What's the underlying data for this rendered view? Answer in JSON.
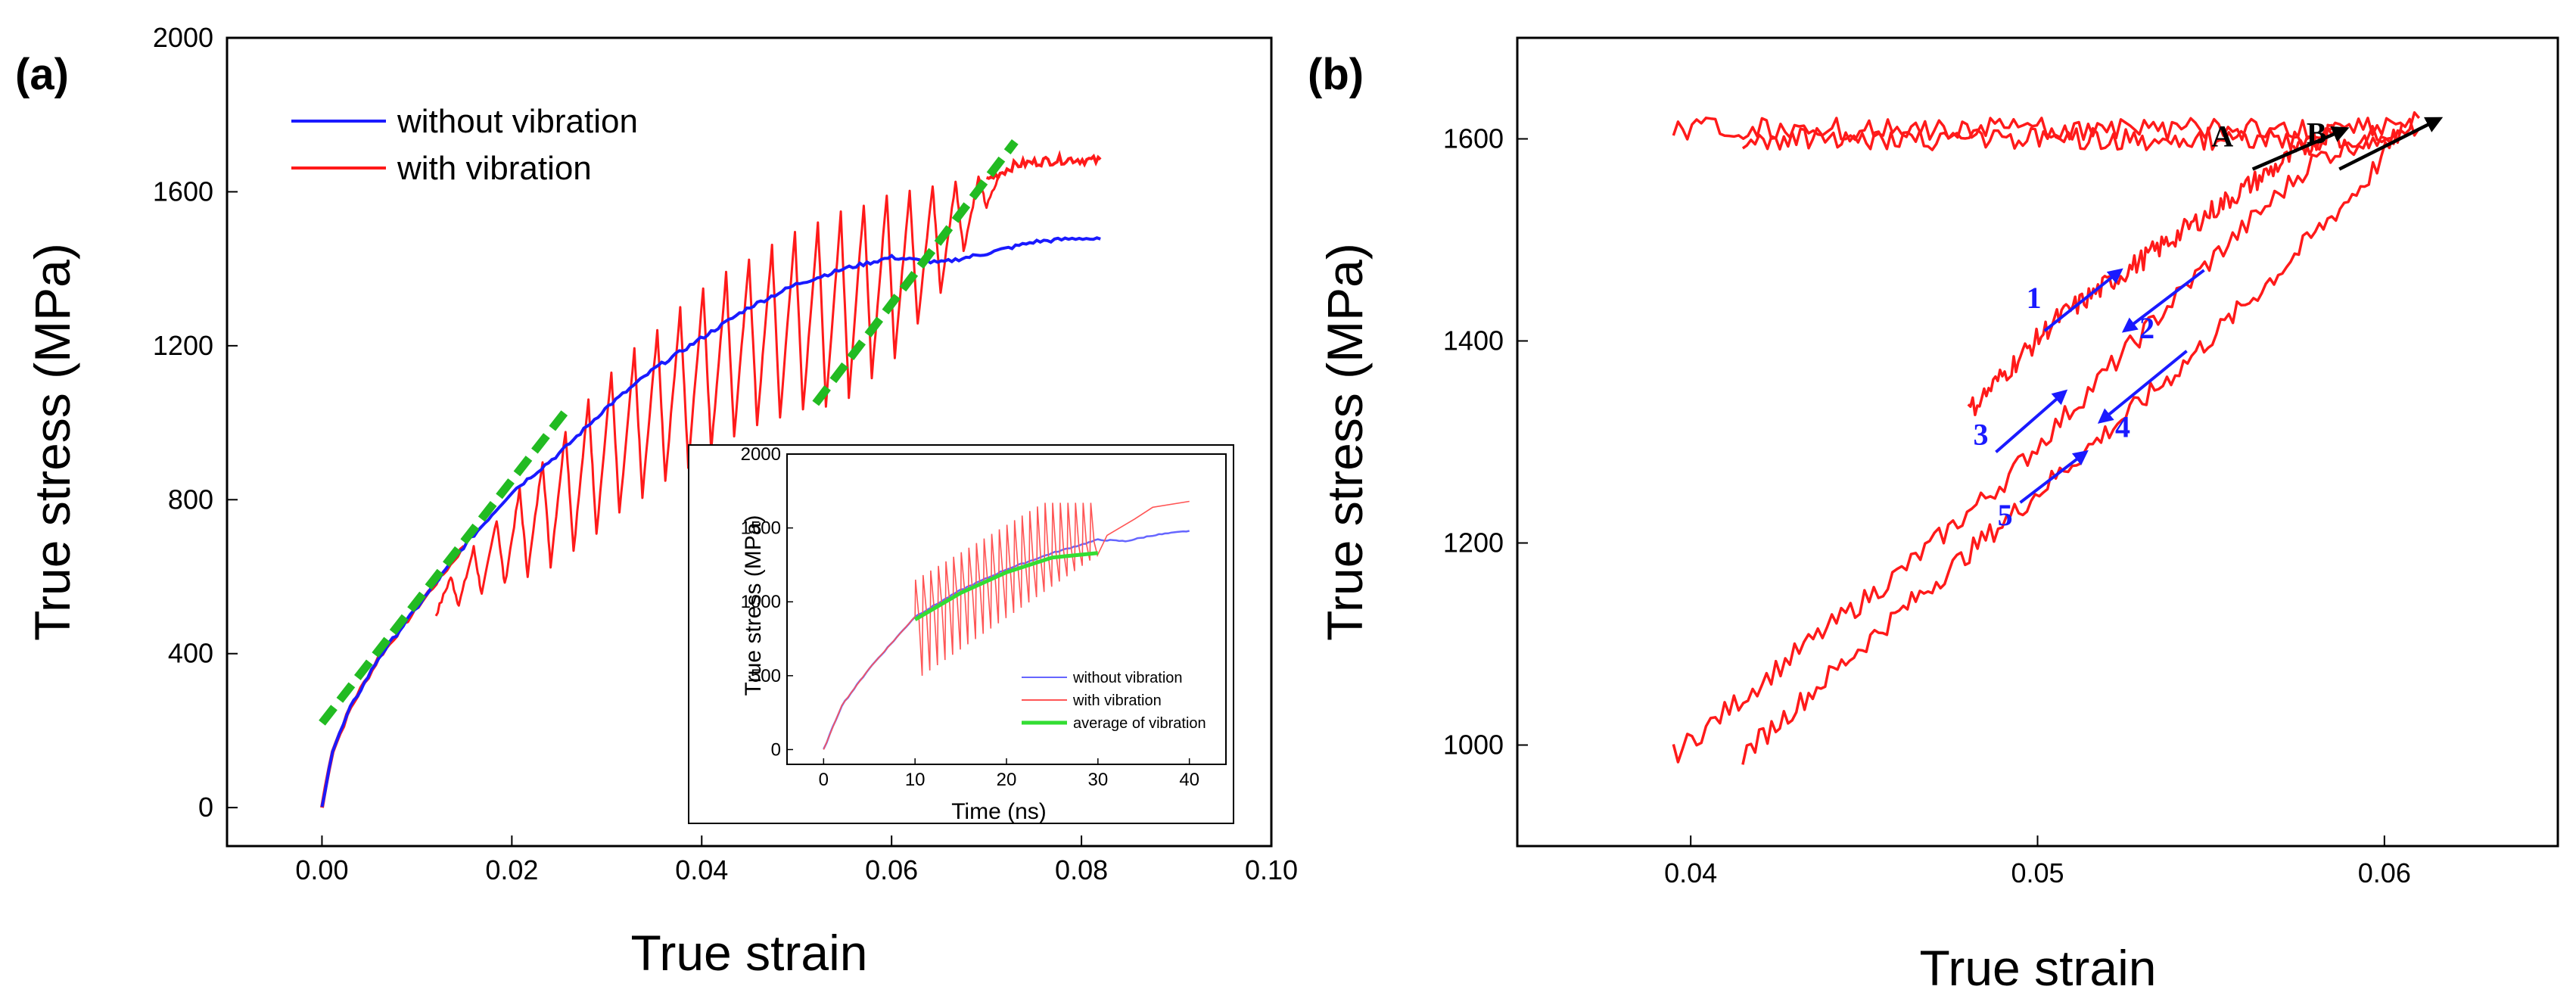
{
  "chart_data": [
    {
      "id": "a",
      "type": "line",
      "panel_label": "(a)",
      "xlabel": "True strain",
      "ylabel": "True stress (MPa)",
      "xlim": [
        -0.01,
        0.1
      ],
      "ylim": [
        -100,
        2000
      ],
      "xticks": [
        0.0,
        0.02,
        0.04,
        0.06,
        0.08,
        0.1
      ],
      "xtick_labels": [
        "0.00",
        "0.02",
        "0.04",
        "0.06",
        "0.08",
        "0.10"
      ],
      "yticks": [
        0,
        400,
        800,
        1200,
        1600,
        2000
      ],
      "ytick_labels": [
        "0",
        "400",
        "800",
        "1200",
        "1600",
        "2000"
      ],
      "legend_position": "top-left",
      "series": [
        {
          "name": "without vibration",
          "color": "#1a1aff",
          "points": [
            [
              0.0,
              0
            ],
            [
              0.001,
              140
            ],
            [
              0.003,
              260
            ],
            [
              0.006,
              390
            ],
            [
              0.01,
              520
            ],
            [
              0.015,
              680
            ],
            [
              0.02,
              820
            ],
            [
              0.025,
              920
            ],
            [
              0.03,
              1040
            ],
            [
              0.035,
              1140
            ],
            [
              0.04,
              1220
            ],
            [
              0.045,
              1300
            ],
            [
              0.05,
              1360
            ],
            [
              0.055,
              1400
            ],
            [
              0.06,
              1430
            ],
            [
              0.065,
              1415
            ],
            [
              0.07,
              1440
            ],
            [
              0.075,
              1470
            ],
            [
              0.08,
              1480
            ],
            [
              0.082,
              1475
            ]
          ]
        },
        {
          "name": "with vibration",
          "color": "#ff1a1a",
          "upper_envelope": [
            [
              0.012,
              550
            ],
            [
              0.02,
              800
            ],
            [
              0.03,
              1120
            ],
            [
              0.04,
              1350
            ],
            [
              0.05,
              1500
            ],
            [
              0.06,
              1600
            ],
            [
              0.07,
              1640
            ],
            [
              0.075,
              1690
            ],
            [
              0.082,
              1690
            ]
          ],
          "lower_envelope": [
            [
              0.012,
              500
            ],
            [
              0.025,
              640
            ],
            [
              0.035,
              830
            ],
            [
              0.045,
              990
            ],
            [
              0.055,
              1060
            ],
            [
              0.06,
              1160
            ],
            [
              0.065,
              1330
            ],
            [
              0.07,
              1560
            ],
            [
              0.075,
              1660
            ],
            [
              0.082,
              1670
            ]
          ],
          "cycles": 24
        }
      ],
      "guide_lines": [
        {
          "name": "elastic-slope-guide",
          "color": "#22bb22",
          "points": [
            [
              0.0,
              220
            ],
            [
              0.026,
              1040
            ]
          ]
        },
        {
          "name": "unloading-slope-guide",
          "color": "#22bb22",
          "points": [
            [
              0.052,
              1050
            ],
            [
              0.073,
              1730
            ]
          ]
        }
      ],
      "inset": {
        "xlabel": "Time (ns)",
        "ylabel": "True stress (MPa)",
        "xlim": [
          -4,
          44
        ],
        "ylim": [
          -100,
          2000
        ],
        "xticks": [
          0,
          10,
          20,
          30,
          40
        ],
        "xtick_labels": [
          "0",
          "10",
          "20",
          "30",
          "40"
        ],
        "yticks": [
          0,
          500,
          1000,
          1500,
          2000
        ],
        "ytick_labels": [
          "0",
          "500",
          "1000",
          "1500",
          "2000"
        ],
        "legend": [
          {
            "name": "without vibration",
            "color": "#6666ff"
          },
          {
            "name": "with vibration",
            "color": "#ff5555"
          },
          {
            "name": "average of vibration",
            "color": "#33dd33"
          }
        ]
      }
    },
    {
      "id": "b",
      "type": "line",
      "panel_label": "(b)",
      "xlabel": "True strain",
      "ylabel": "True stress (MPa)",
      "xlim": [
        0.035,
        0.065
      ],
      "ylim": [
        900,
        1700
      ],
      "xticks": [
        0.04,
        0.05,
        0.06
      ],
      "xtick_labels": [
        "0.04",
        "0.05",
        "0.06"
      ],
      "yticks": [
        1000,
        1200,
        1400,
        1600
      ],
      "ytick_labels": [
        "1000",
        "1200",
        "1400",
        "1600"
      ],
      "loops": [
        {
          "points": [
            [
              0.0395,
              990
            ],
            [
              0.043,
              1090
            ],
            [
              0.046,
              1170
            ],
            [
              0.049,
              1260
            ],
            [
              0.052,
              1370
            ],
            [
              0.055,
              1480
            ],
            [
              0.058,
              1580
            ],
            [
              0.061,
              1620
            ]
          ]
        },
        {
          "points": [
            [
              0.061,
              1610
            ],
            [
              0.0585,
              1500
            ],
            [
              0.056,
              1420
            ],
            [
              0.0535,
              1330
            ],
            [
              0.051,
              1260
            ],
            [
              0.048,
              1170
            ],
            [
              0.045,
              1070
            ],
            [
              0.0395,
              980
            ]
          ]
        },
        {
          "points": [
            [
              0.0415,
              990
            ],
            [
              0.045,
              1100
            ],
            [
              0.048,
              1190
            ],
            [
              0.051,
              1280
            ],
            [
              0.054,
              1370
            ],
            [
              0.057,
              1470
            ],
            [
              0.0595,
              1560
            ],
            [
              0.0605,
              1610
            ]
          ]
        },
        {
          "points": [
            [
              0.0605,
              1600
            ],
            [
              0.0575,
              1500
            ],
            [
              0.055,
              1410
            ],
            [
              0.0525,
              1320
            ],
            [
              0.05,
              1240
            ],
            [
              0.047,
              1150
            ],
            [
              0.0445,
              1060
            ],
            [
              0.0415,
              985
            ]
          ]
        },
        {
          "points": [
            [
              0.048,
              1330
            ],
            [
              0.0505,
              1420
            ],
            [
              0.053,
              1480
            ],
            [
              0.0555,
              1540
            ],
            [
              0.0585,
              1610
            ]
          ]
        }
      ],
      "annotations": [
        {
          "label": "1",
          "color": "#1a1aff",
          "arrow": [
            [
              0.0502,
              1410
            ],
            [
              0.0524,
              1470
            ]
          ]
        },
        {
          "label": "2",
          "color": "#1a1aff",
          "arrow": [
            [
              0.0548,
              1470
            ],
            [
              0.0525,
              1410
            ]
          ]
        },
        {
          "label": "3",
          "color": "#1a1aff",
          "arrow": [
            [
              0.0488,
              1290
            ],
            [
              0.0508,
              1350
            ]
          ]
        },
        {
          "label": "4",
          "color": "#1a1aff",
          "arrow": [
            [
              0.0543,
              1390
            ],
            [
              0.0518,
              1320
            ]
          ]
        },
        {
          "label": "5",
          "color": "#1a1aff",
          "arrow": [
            [
              0.0495,
              1240
            ],
            [
              0.0514,
              1290
            ]
          ]
        },
        {
          "label": "A",
          "color": "#000000",
          "arrow": [
            [
              0.0562,
              1570
            ],
            [
              0.0589,
              1610
            ]
          ]
        },
        {
          "label": "B",
          "color": "#000000",
          "arrow": [
            [
              0.0587,
              1570
            ],
            [
              0.0616,
              1620
            ]
          ]
        }
      ]
    }
  ]
}
